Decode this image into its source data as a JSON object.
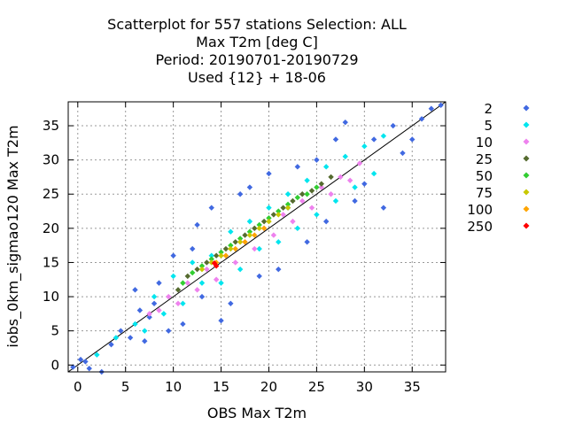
{
  "chart_data": {
    "type": "scatter",
    "title_lines": [
      "Scatterplot for  557 stations Selection: ALL",
      "Max T2m [deg C]",
      "Period: 20190701-20190729",
      "Used {12} + 18-06"
    ],
    "xlabel": "OBS Max T2m",
    "ylabel": "iobs_0km_sigmao120 Max T2m",
    "xlim": [
      -1,
      38.5
    ],
    "ylim": [
      -1,
      38.5
    ],
    "xticks": [
      "0",
      "5",
      "10",
      "15",
      "20",
      "25",
      "30",
      "35"
    ],
    "yticks": [
      "0",
      "5",
      "10",
      "15",
      "20",
      "25",
      "30",
      "35"
    ],
    "grid": true,
    "legend_position": "right",
    "diagonal_line": true,
    "series": [
      {
        "name": "2",
        "color": "#4169e1",
        "marker": "diamond",
        "points": [
          [
            -0.5,
            -0.3
          ],
          [
            0.3,
            0.8
          ],
          [
            0.8,
            0.5
          ],
          [
            1.2,
            -0.5
          ],
          [
            2.5,
            -1
          ],
          [
            3.5,
            3
          ],
          [
            4.5,
            5
          ],
          [
            5.5,
            4
          ],
          [
            6,
            11
          ],
          [
            6.5,
            8
          ],
          [
            7,
            3.5
          ],
          [
            7.5,
            7
          ],
          [
            8,
            9
          ],
          [
            8.5,
            12
          ],
          [
            9.5,
            5
          ],
          [
            10,
            16
          ],
          [
            11,
            6
          ],
          [
            12,
            17
          ],
          [
            12.5,
            20.5
          ],
          [
            13,
            10
          ],
          [
            14,
            23
          ],
          [
            15,
            6.5
          ],
          [
            16,
            9
          ],
          [
            17,
            25
          ],
          [
            18,
            26
          ],
          [
            19,
            13
          ],
          [
            20,
            28
          ],
          [
            21,
            14
          ],
          [
            22,
            23
          ],
          [
            23,
            29
          ],
          [
            24,
            18
          ],
          [
            25,
            30
          ],
          [
            26,
            21
          ],
          [
            27,
            33
          ],
          [
            28,
            35.5
          ],
          [
            29,
            24
          ],
          [
            30,
            26.5
          ],
          [
            31,
            33
          ],
          [
            32,
            23
          ],
          [
            33,
            35
          ],
          [
            34,
            31
          ],
          [
            35,
            33
          ],
          [
            36,
            36
          ],
          [
            37,
            37.5
          ],
          [
            38,
            38
          ]
        ]
      },
      {
        "name": "5",
        "color": "#00e5ee",
        "marker": "diamond",
        "points": [
          [
            2,
            1.5
          ],
          [
            4,
            4
          ],
          [
            6,
            6
          ],
          [
            7,
            5
          ],
          [
            8,
            10
          ],
          [
            9,
            7.5
          ],
          [
            10,
            13
          ],
          [
            11,
            9
          ],
          [
            12,
            15
          ],
          [
            13,
            12
          ],
          [
            14,
            16
          ],
          [
            15,
            12
          ],
          [
            16,
            19.5
          ],
          [
            17,
            14
          ],
          [
            18,
            21
          ],
          [
            19,
            17
          ],
          [
            20,
            23
          ],
          [
            21,
            18
          ],
          [
            22,
            25
          ],
          [
            23,
            20
          ],
          [
            24,
            27
          ],
          [
            25,
            22
          ],
          [
            26,
            29
          ],
          [
            27,
            24
          ],
          [
            28,
            30.5
          ],
          [
            29,
            26
          ],
          [
            30,
            32
          ],
          [
            31,
            28
          ],
          [
            32,
            33.5
          ]
        ]
      },
      {
        "name": "10",
        "color": "#ee82ee",
        "marker": "diamond",
        "points": [
          [
            7.5,
            7.5
          ],
          [
            8.5,
            8
          ],
          [
            9.5,
            10
          ],
          [
            10.5,
            9
          ],
          [
            11.5,
            12
          ],
          [
            12.5,
            11
          ],
          [
            13.5,
            14
          ],
          [
            14.5,
            12.5
          ],
          [
            15.5,
            16
          ],
          [
            16.5,
            15
          ],
          [
            17.5,
            18
          ],
          [
            18.5,
            17
          ],
          [
            19.5,
            20
          ],
          [
            20.5,
            19
          ],
          [
            21.5,
            22
          ],
          [
            22.5,
            21
          ],
          [
            23.5,
            24
          ],
          [
            24.5,
            23
          ],
          [
            25.5,
            26
          ],
          [
            26.5,
            25
          ],
          [
            27.5,
            27.5
          ],
          [
            28.5,
            27
          ],
          [
            29.5,
            29.5
          ]
        ]
      },
      {
        "name": "25",
        "color": "#556b2f",
        "marker": "diamond",
        "points": [
          [
            10.5,
            11
          ],
          [
            11.5,
            13
          ],
          [
            12.5,
            14
          ],
          [
            13.5,
            15
          ],
          [
            14.5,
            16
          ],
          [
            15.5,
            17
          ],
          [
            16.5,
            18
          ],
          [
            17.5,
            19
          ],
          [
            18.5,
            20
          ],
          [
            19.5,
            21
          ],
          [
            20.5,
            22
          ],
          [
            21.5,
            23
          ],
          [
            22.5,
            24
          ],
          [
            23.5,
            25
          ],
          [
            24.5,
            25.5
          ],
          [
            25.5,
            26.5
          ],
          [
            26.5,
            27.5
          ]
        ]
      },
      {
        "name": "50",
        "color": "#32cd32",
        "marker": "diamond",
        "points": [
          [
            11,
            12
          ],
          [
            12,
            13.5
          ],
          [
            13,
            14.5
          ],
          [
            14,
            15.5
          ],
          [
            15,
            16.5
          ],
          [
            16,
            17.5
          ],
          [
            17,
            18.5
          ],
          [
            18,
            19.5
          ],
          [
            19,
            20.5
          ],
          [
            20,
            21.5
          ],
          [
            21,
            22.5
          ],
          [
            22,
            23.5
          ],
          [
            23,
            24.5
          ],
          [
            24,
            25
          ],
          [
            25,
            26
          ]
        ]
      },
      {
        "name": "75",
        "color": "#c8c800",
        "marker": "diamond",
        "points": [
          [
            13,
            14
          ],
          [
            14,
            15
          ],
          [
            15,
            16
          ],
          [
            16,
            17
          ],
          [
            17,
            18
          ],
          [
            18,
            19
          ],
          [
            19,
            20
          ],
          [
            20,
            21
          ],
          [
            21,
            22
          ],
          [
            22,
            23
          ]
        ]
      },
      {
        "name": "100",
        "color": "#ffa500",
        "marker": "diamond",
        "points": [
          [
            14.5,
            15
          ],
          [
            15.5,
            16
          ],
          [
            16.5,
            17
          ],
          [
            17.5,
            18
          ],
          [
            18.5,
            19
          ],
          [
            19.5,
            20
          ]
        ]
      },
      {
        "name": "250",
        "color": "#ff0000",
        "marker": "diamond",
        "points": [
          [
            14.5,
            14.5
          ],
          [
            14.3,
            14.9
          ]
        ]
      }
    ]
  }
}
